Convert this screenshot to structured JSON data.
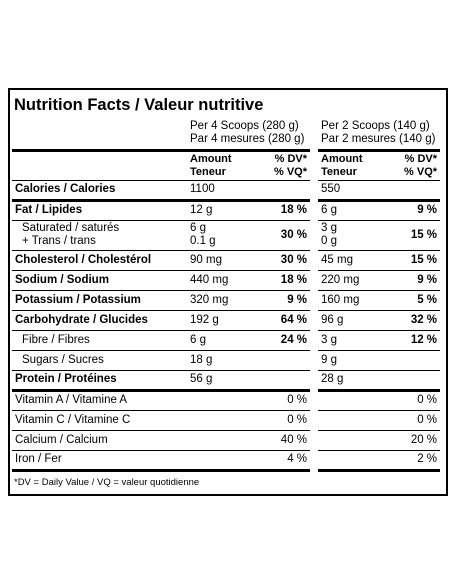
{
  "title": "Nutrition Facts / Valeur nutritive",
  "servings": [
    [
      "Per 4 Scoops (280 g)",
      "Par 4 mesures (280 g)"
    ],
    [
      "Per 2 Scoops (140 g)",
      "Par 2 mesures (140 g)"
    ]
  ],
  "column_headers": {
    "amount": [
      "Amount",
      "Teneur"
    ],
    "dv": [
      "% DV*",
      "% VQ*"
    ]
  },
  "sections": [
    {
      "bold_dv": true,
      "rows": [
        {
          "label": [
            "Calories / Calories"
          ],
          "bold": true,
          "values": [
            {
              "amount": [
                "1100"
              ]
            },
            {
              "amount": [
                "550"
              ]
            }
          ]
        }
      ]
    },
    {
      "bold_dv": true,
      "rows": [
        {
          "label": [
            "Fat / Lipides"
          ],
          "bold": true,
          "values": [
            {
              "amount": [
                "12 g"
              ],
              "dv": "18 %"
            },
            {
              "amount": [
                "6 g"
              ],
              "dv": "9 %"
            }
          ]
        },
        {
          "label": [
            "Saturated / saturés",
            "+ Trans / trans"
          ],
          "indent": true,
          "values": [
            {
              "amount": [
                "6 g",
                "0.1 g"
              ],
              "dv": "30 %"
            },
            {
              "amount": [
                "3 g",
                "0 g"
              ],
              "dv": "15 %"
            }
          ]
        },
        {
          "label": [
            "Cholesterol / Cholestérol"
          ],
          "bold": true,
          "values": [
            {
              "amount": [
                "90 mg"
              ],
              "dv": "30 %"
            },
            {
              "amount": [
                "45 mg"
              ],
              "dv": "15 %"
            }
          ]
        },
        {
          "label": [
            "Sodium / Sodium"
          ],
          "bold": true,
          "values": [
            {
              "amount": [
                "440 mg"
              ],
              "dv": "18 %"
            },
            {
              "amount": [
                "220 mg"
              ],
              "dv": "9 %"
            }
          ]
        },
        {
          "label": [
            "Potassium / Potassium"
          ],
          "bold": true,
          "values": [
            {
              "amount": [
                "320 mg"
              ],
              "dv": "9 %"
            },
            {
              "amount": [
                "160 mg"
              ],
              "dv": "5 %"
            }
          ]
        },
        {
          "label": [
            "Carbohydrate / Glucides"
          ],
          "bold": true,
          "values": [
            {
              "amount": [
                "192 g"
              ],
              "dv": "64 %"
            },
            {
              "amount": [
                "96 g"
              ],
              "dv": "32 %"
            }
          ]
        },
        {
          "label": [
            "Fibre / Fibres"
          ],
          "indent": true,
          "values": [
            {
              "amount": [
                "6 g"
              ],
              "dv": "24 %"
            },
            {
              "amount": [
                "3 g"
              ],
              "dv": "12 %"
            }
          ]
        },
        {
          "label": [
            "Sugars / Sucres"
          ],
          "indent": true,
          "values": [
            {
              "amount": [
                "18 g"
              ]
            },
            {
              "amount": [
                "9 g"
              ]
            }
          ]
        },
        {
          "label": [
            "Protein / Protéines"
          ],
          "bold": true,
          "values": [
            {
              "amount": [
                "56 g"
              ]
            },
            {
              "amount": [
                "28 g"
              ]
            }
          ]
        }
      ]
    },
    {
      "bold_dv": false,
      "rows": [
        {
          "label": [
            "Vitamin A / Vitamine A"
          ],
          "values": [
            {
              "dv": "0 %"
            },
            {
              "dv": "0 %"
            }
          ]
        },
        {
          "label": [
            "Vitamin C / Vitamine C"
          ],
          "values": [
            {
              "dv": "0 %"
            },
            {
              "dv": "0 %"
            }
          ]
        },
        {
          "label": [
            "Calcium / Calcium"
          ],
          "values": [
            {
              "dv": "40 %"
            },
            {
              "dv": "20 %"
            }
          ]
        },
        {
          "label": [
            "Iron / Fer"
          ],
          "values": [
            {
              "dv": "4 %"
            },
            {
              "dv": "2 %"
            }
          ]
        }
      ]
    }
  ],
  "footnote": "*DV = Daily Value / VQ = valeur quotidienne"
}
